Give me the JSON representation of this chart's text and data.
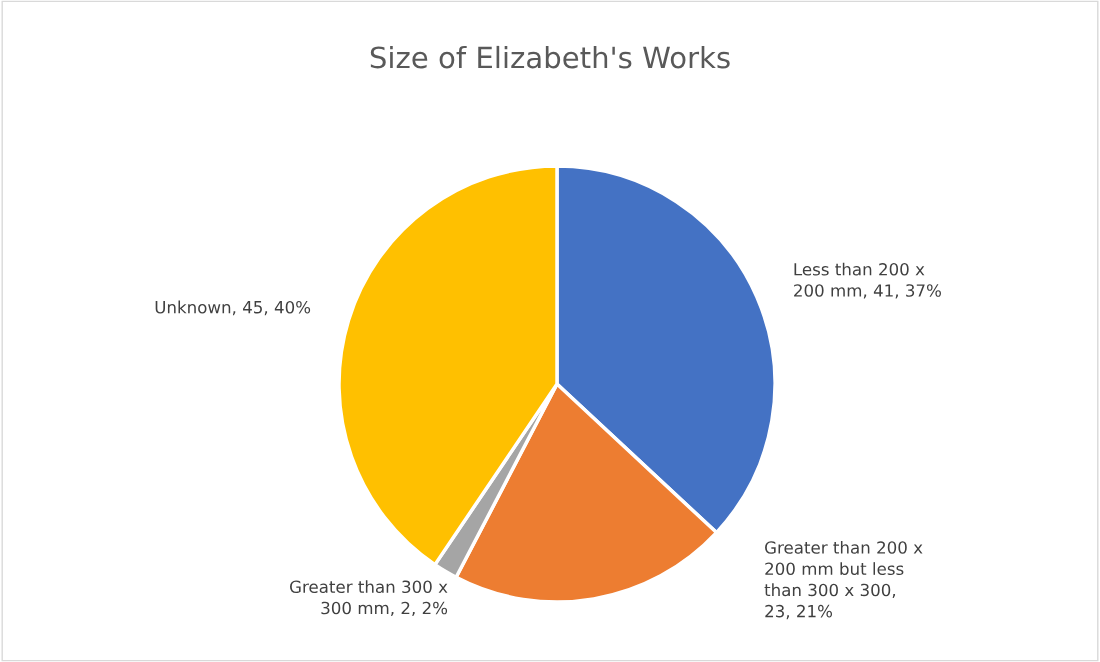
{
  "chart_data": {
    "type": "pie",
    "title": "Size of Elizabeth's Works",
    "categories": [
      "Less than 200 x 200 mm, 41, 37%",
      "Greater than 200 x 200 mm but less than 300 x 300, 23, 21%",
      "Greater than 300 x 300 mm, 2, 2%",
      "Unknown, 45, 40%"
    ],
    "values": [
      41,
      23,
      2,
      45
    ],
    "colors": [
      "#4472c4",
      "#ed7d31",
      "#a5a5a5",
      "#ffc000"
    ]
  }
}
